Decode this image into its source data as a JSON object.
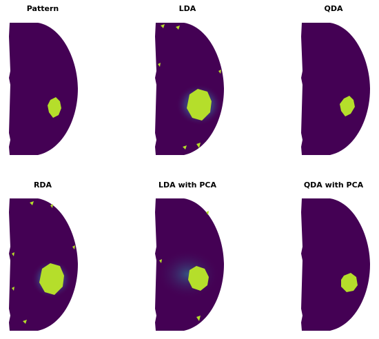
{
  "panels": [
    {
      "title": "Pattern"
    },
    {
      "title": "LDA"
    },
    {
      "title": "QDA"
    },
    {
      "title": "RDA"
    },
    {
      "title": "LDA with PCA"
    },
    {
      "title": "QDA with PCA"
    }
  ]
}
